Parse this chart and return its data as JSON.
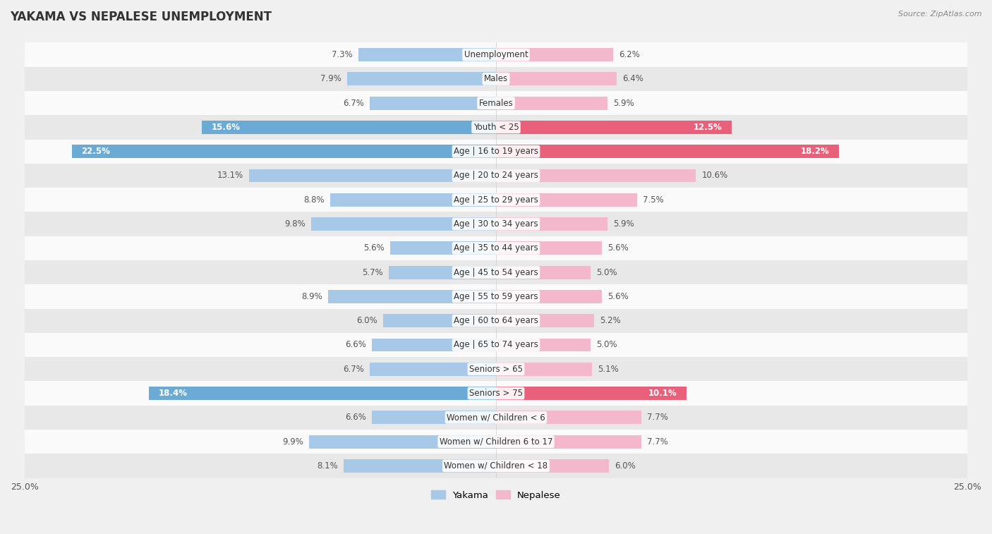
{
  "title": "YAKAMA VS NEPALESE UNEMPLOYMENT",
  "source": "Source: ZipAtlas.com",
  "categories": [
    "Unemployment",
    "Males",
    "Females",
    "Youth < 25",
    "Age | 16 to 19 years",
    "Age | 20 to 24 years",
    "Age | 25 to 29 years",
    "Age | 30 to 34 years",
    "Age | 35 to 44 years",
    "Age | 45 to 54 years",
    "Age | 55 to 59 years",
    "Age | 60 to 64 years",
    "Age | 65 to 74 years",
    "Seniors > 65",
    "Seniors > 75",
    "Women w/ Children < 6",
    "Women w/ Children 6 to 17",
    "Women w/ Children < 18"
  ],
  "yakama": [
    7.3,
    7.9,
    6.7,
    15.6,
    22.5,
    13.1,
    8.8,
    9.8,
    5.6,
    5.7,
    8.9,
    6.0,
    6.6,
    6.7,
    18.4,
    6.6,
    9.9,
    8.1
  ],
  "nepalese": [
    6.2,
    6.4,
    5.9,
    12.5,
    18.2,
    10.6,
    7.5,
    5.9,
    5.6,
    5.0,
    5.6,
    5.2,
    5.0,
    5.1,
    10.1,
    7.7,
    7.7,
    6.0
  ],
  "yakama_color_normal": "#a8c8e8",
  "yakama_color_highlight": "#6aaad4",
  "nepalese_color_normal": "#f4b8cc",
  "nepalese_color_highlight": "#e8607a",
  "highlight_rows": [
    3,
    4,
    14
  ],
  "bar_height": 0.55,
  "xtick_label": "25.0%",
  "background_color": "#f0f0f0",
  "row_bg_light": "#fafafa",
  "row_bg_dark": "#e8e8e8",
  "label_fontsize": 8.5,
  "category_fontsize": 8.5,
  "title_fontsize": 12,
  "source_fontsize": 8
}
